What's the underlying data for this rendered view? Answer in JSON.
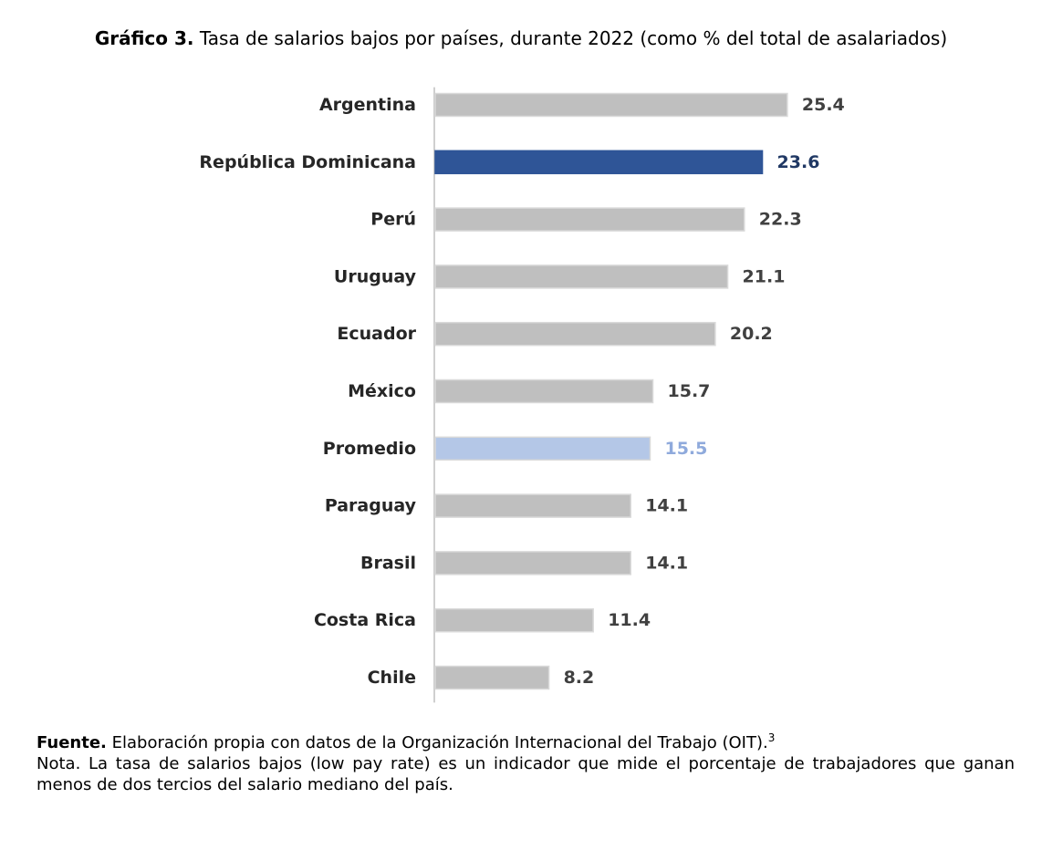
{
  "title": {
    "label": "Gráfico 3.",
    "text": "Tasa de salarios bajos por países, durante 2022 (como % del total de asalariados)"
  },
  "chart_data": {
    "type": "bar",
    "orientation": "horizontal",
    "categories": [
      "Argentina",
      "República Dominicana",
      "Perú",
      "Uruguay",
      "Ecuador",
      "México",
      "Promedio",
      "Paraguay",
      "Brasil",
      "Costa Rica",
      "Chile"
    ],
    "values": [
      25.4,
      23.6,
      22.3,
      21.1,
      20.2,
      15.7,
      15.5,
      14.1,
      14.1,
      11.4,
      8.2
    ],
    "value_labels": [
      "25.4",
      "23.6",
      "22.3",
      "21.1",
      "20.2",
      "15.7",
      "15.5",
      "14.1",
      "14.1",
      "11.4",
      "8.2"
    ],
    "bar_colors": [
      "#bfbfbf",
      "#2f5597",
      "#bfbfbf",
      "#bfbfbf",
      "#bfbfbf",
      "#bfbfbf",
      "#b4c7e7",
      "#bfbfbf",
      "#bfbfbf",
      "#bfbfbf",
      "#bfbfbf"
    ],
    "label_colors": [
      "#404040",
      "#203864",
      "#404040",
      "#404040",
      "#404040",
      "#404040",
      "#8faadc",
      "#404040",
      "#404040",
      "#404040",
      "#404040"
    ],
    "xlim": [
      0,
      26
    ],
    "grid": false,
    "legend": "none"
  },
  "footer": {
    "source_label": "Fuente.",
    "source_text": "Elaboración propia con datos de la Organización Internacional del Trabajo (OIT).",
    "source_footnote": "3",
    "note": "Nota. La tasa de salarios bajos (low pay rate) es un indicador que mide el porcentaje de trabajadores que ganan menos de dos tercios del salario mediano del país."
  }
}
